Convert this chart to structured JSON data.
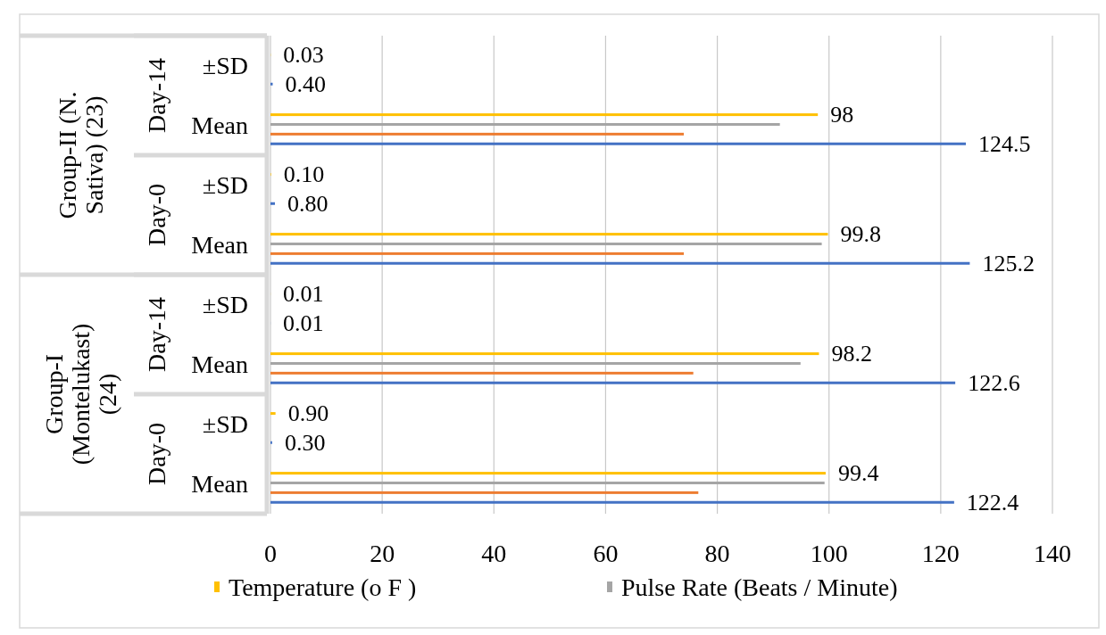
{
  "chart_data": {
    "type": "bar",
    "orientation": "horizontal",
    "categories": [
      "±SD",
      "Mean",
      "±SD",
      "Mean",
      "±SD",
      "Mean",
      "±SD",
      "Mean"
    ],
    "series": [
      {
        "name": "Temperature (o F )",
        "color": "#ffc000",
        "values": [
          0.03,
          98,
          0.1,
          99.8,
          0.01,
          98.2,
          0.9,
          99.4
        ],
        "value_labels": [
          "0.03",
          "98",
          "0.10",
          "99.8",
          "0.01",
          "98.2",
          "0.90",
          "99.4"
        ]
      },
      {
        "name": "Pulse Rate (Beats / Minute)",
        "color": "#a5a5a5",
        "values": [
          null,
          91.2,
          null,
          98.7,
          null,
          94.9,
          null,
          99.2
        ]
      },
      {
        "color": "#ed7d31",
        "values": [
          null,
          74,
          null,
          74,
          null,
          75.7,
          null,
          76.6
        ]
      },
      {
        "color": "#4472c4",
        "values": [
          0.4,
          124.5,
          0.8,
          125.2,
          0.01,
          122.6,
          0.3,
          122.4
        ],
        "value_labels": [
          "0.40",
          "124.5",
          "0.80",
          "125.2",
          "0.01",
          "122.6",
          "0.30",
          "122.4"
        ]
      }
    ],
    "annotations": [
      "Group-II (N. Sativa) (23)",
      "Day-14",
      "Day-0",
      "Group-I (Montelukast) (24)",
      "Day-14",
      "Day-0"
    ],
    "xlim": [
      0,
      140
    ],
    "xticks": [
      0,
      20,
      40,
      60,
      80,
      100,
      120,
      140
    ],
    "grid": "x",
    "legend": "bottom"
  }
}
